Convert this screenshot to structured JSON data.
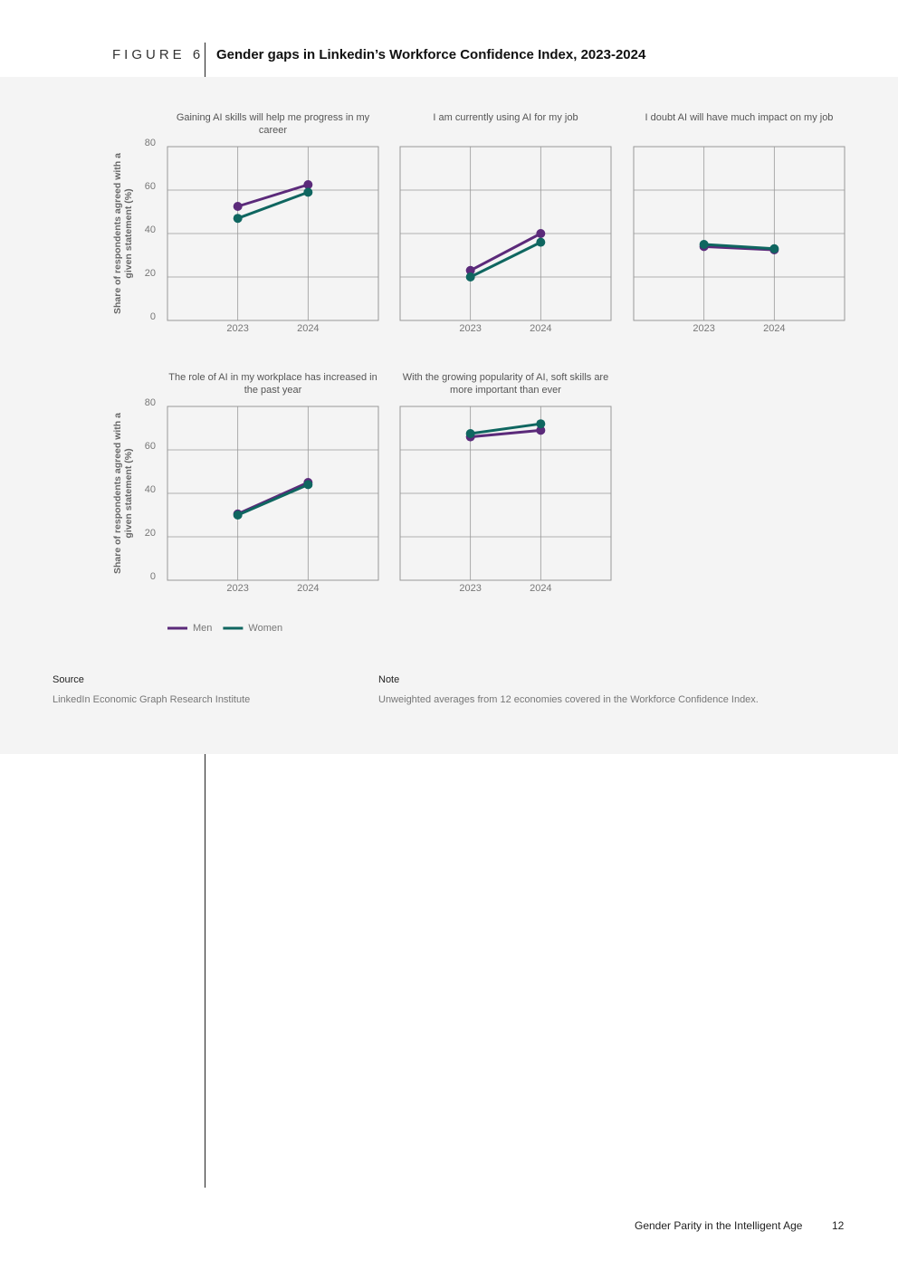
{
  "figure_label": "FIGURE 6",
  "title": "Gender gaps in Linkedin’s Workforce Confidence Index, 2023-2024",
  "chart_data": [
    {
      "type": "line",
      "title": "Gaining AI skills will help me progress in my career",
      "ylabel": "Share of respondents agreed with a given statement (%)",
      "x": [
        2023,
        2024
      ],
      "xlim": [
        2022,
        2025
      ],
      "xticks": [
        2023,
        2024
      ],
      "ylim": [
        0,
        80
      ],
      "yticks": [
        0,
        20,
        40,
        60,
        80
      ],
      "grid": true,
      "series": [
        {
          "name": "Men",
          "color": "#5b2a7a",
          "values": [
            52.5,
            62.5
          ]
        },
        {
          "name": "Women",
          "color": "#0f6660",
          "values": [
            47,
            59
          ]
        }
      ]
    },
    {
      "type": "line",
      "title": "I am currently using AI for my job",
      "x": [
        2023,
        2024
      ],
      "xlim": [
        2022,
        2025
      ],
      "xticks": [
        2023,
        2024
      ],
      "ylim": [
        0,
        80
      ],
      "yticks": [
        0,
        20,
        40,
        60,
        80
      ],
      "grid": true,
      "series": [
        {
          "name": "Men",
          "color": "#5b2a7a",
          "values": [
            23,
            40
          ]
        },
        {
          "name": "Women",
          "color": "#0f6660",
          "values": [
            20,
            36
          ]
        }
      ]
    },
    {
      "type": "line",
      "title": "I doubt AI will have much impact on my job",
      "x": [
        2023,
        2024
      ],
      "xlim": [
        2022,
        2025
      ],
      "xticks": [
        2023,
        2024
      ],
      "ylim": [
        0,
        80
      ],
      "yticks": [
        0,
        20,
        40,
        60,
        80
      ],
      "grid": true,
      "series": [
        {
          "name": "Men",
          "color": "#5b2a7a",
          "values": [
            34,
            32.5
          ]
        },
        {
          "name": "Women",
          "color": "#0f6660",
          "values": [
            35,
            33
          ]
        }
      ]
    },
    {
      "type": "line",
      "title": "The role of AI in my workplace has increased in the past year",
      "ylabel": "Share of respondents agreed with a given statement (%)",
      "x": [
        2023,
        2024
      ],
      "xlim": [
        2022,
        2025
      ],
      "xticks": [
        2023,
        2024
      ],
      "ylim": [
        0,
        80
      ],
      "yticks": [
        0,
        20,
        40,
        60,
        80
      ],
      "grid": true,
      "series": [
        {
          "name": "Men",
          "color": "#5b2a7a",
          "values": [
            30.5,
            45
          ]
        },
        {
          "name": "Women",
          "color": "#0f6660",
          "values": [
            30,
            44
          ]
        }
      ]
    },
    {
      "type": "line",
      "title": "With the growing popularity of AI, soft skills are more important than ever",
      "x": [
        2023,
        2024
      ],
      "xlim": [
        2022,
        2025
      ],
      "xticks": [
        2023,
        2024
      ],
      "ylim": [
        0,
        80
      ],
      "yticks": [
        0,
        20,
        40,
        60,
        80
      ],
      "grid": true,
      "series": [
        {
          "name": "Men",
          "color": "#5b2a7a",
          "values": [
            66,
            69
          ]
        },
        {
          "name": "Women",
          "color": "#0f6660",
          "values": [
            67.5,
            72
          ]
        }
      ]
    }
  ],
  "source": {
    "label": "Source",
    "text": "LinkedIn Economic Graph Research Institute"
  },
  "note": {
    "label": "Note",
    "text": "Unweighted averages from 12 economies covered in the Workforce Confidence Index."
  },
  "footer": {
    "title": "Gender Parity in the Intelligent Age",
    "page": "12"
  }
}
